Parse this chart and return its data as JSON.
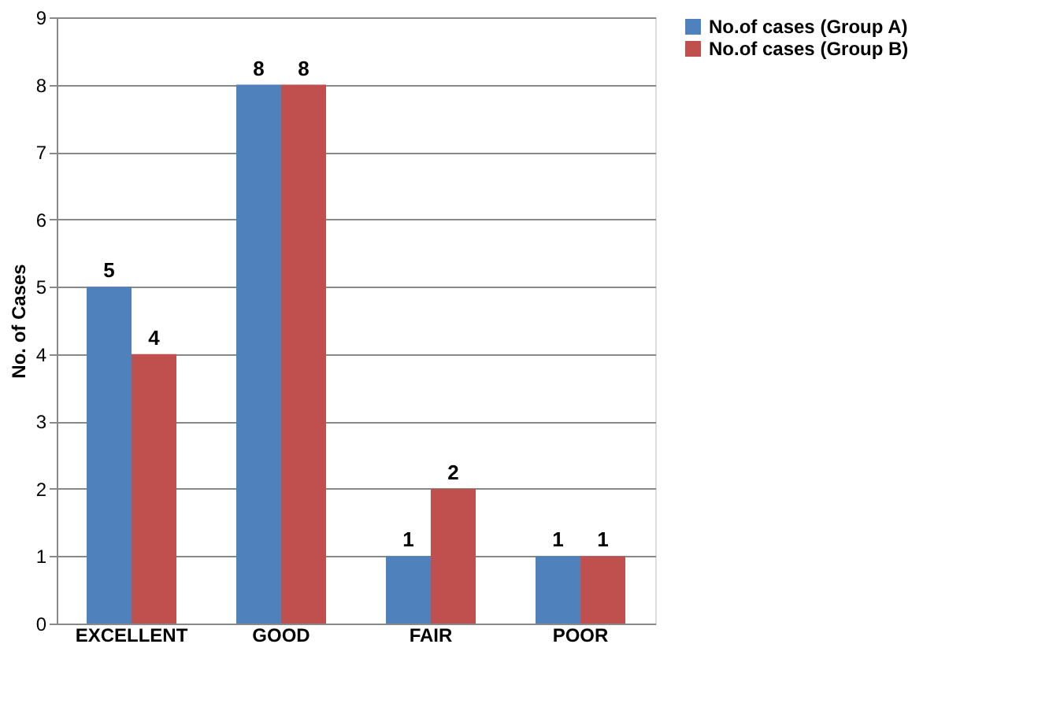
{
  "chart_data": {
    "type": "bar",
    "ylabel": "No. of Cases",
    "categories": [
      "EXCELLENT",
      "GOOD",
      "FAIR",
      "POOR"
    ],
    "series": [
      {
        "name": "No.of cases (Group A)",
        "color": "#4f81bd",
        "values": [
          5,
          8,
          1,
          1
        ]
      },
      {
        "name": "No.of cases (Group B)",
        "color": "#c0504d",
        "values": [
          4,
          8,
          2,
          1
        ]
      }
    ],
    "ylim": [
      0,
      9
    ],
    "yticks": [
      0,
      1,
      2,
      3,
      4,
      5,
      6,
      7,
      8,
      9
    ],
    "grid": "y",
    "legend": "right",
    "data_labels": true
  }
}
